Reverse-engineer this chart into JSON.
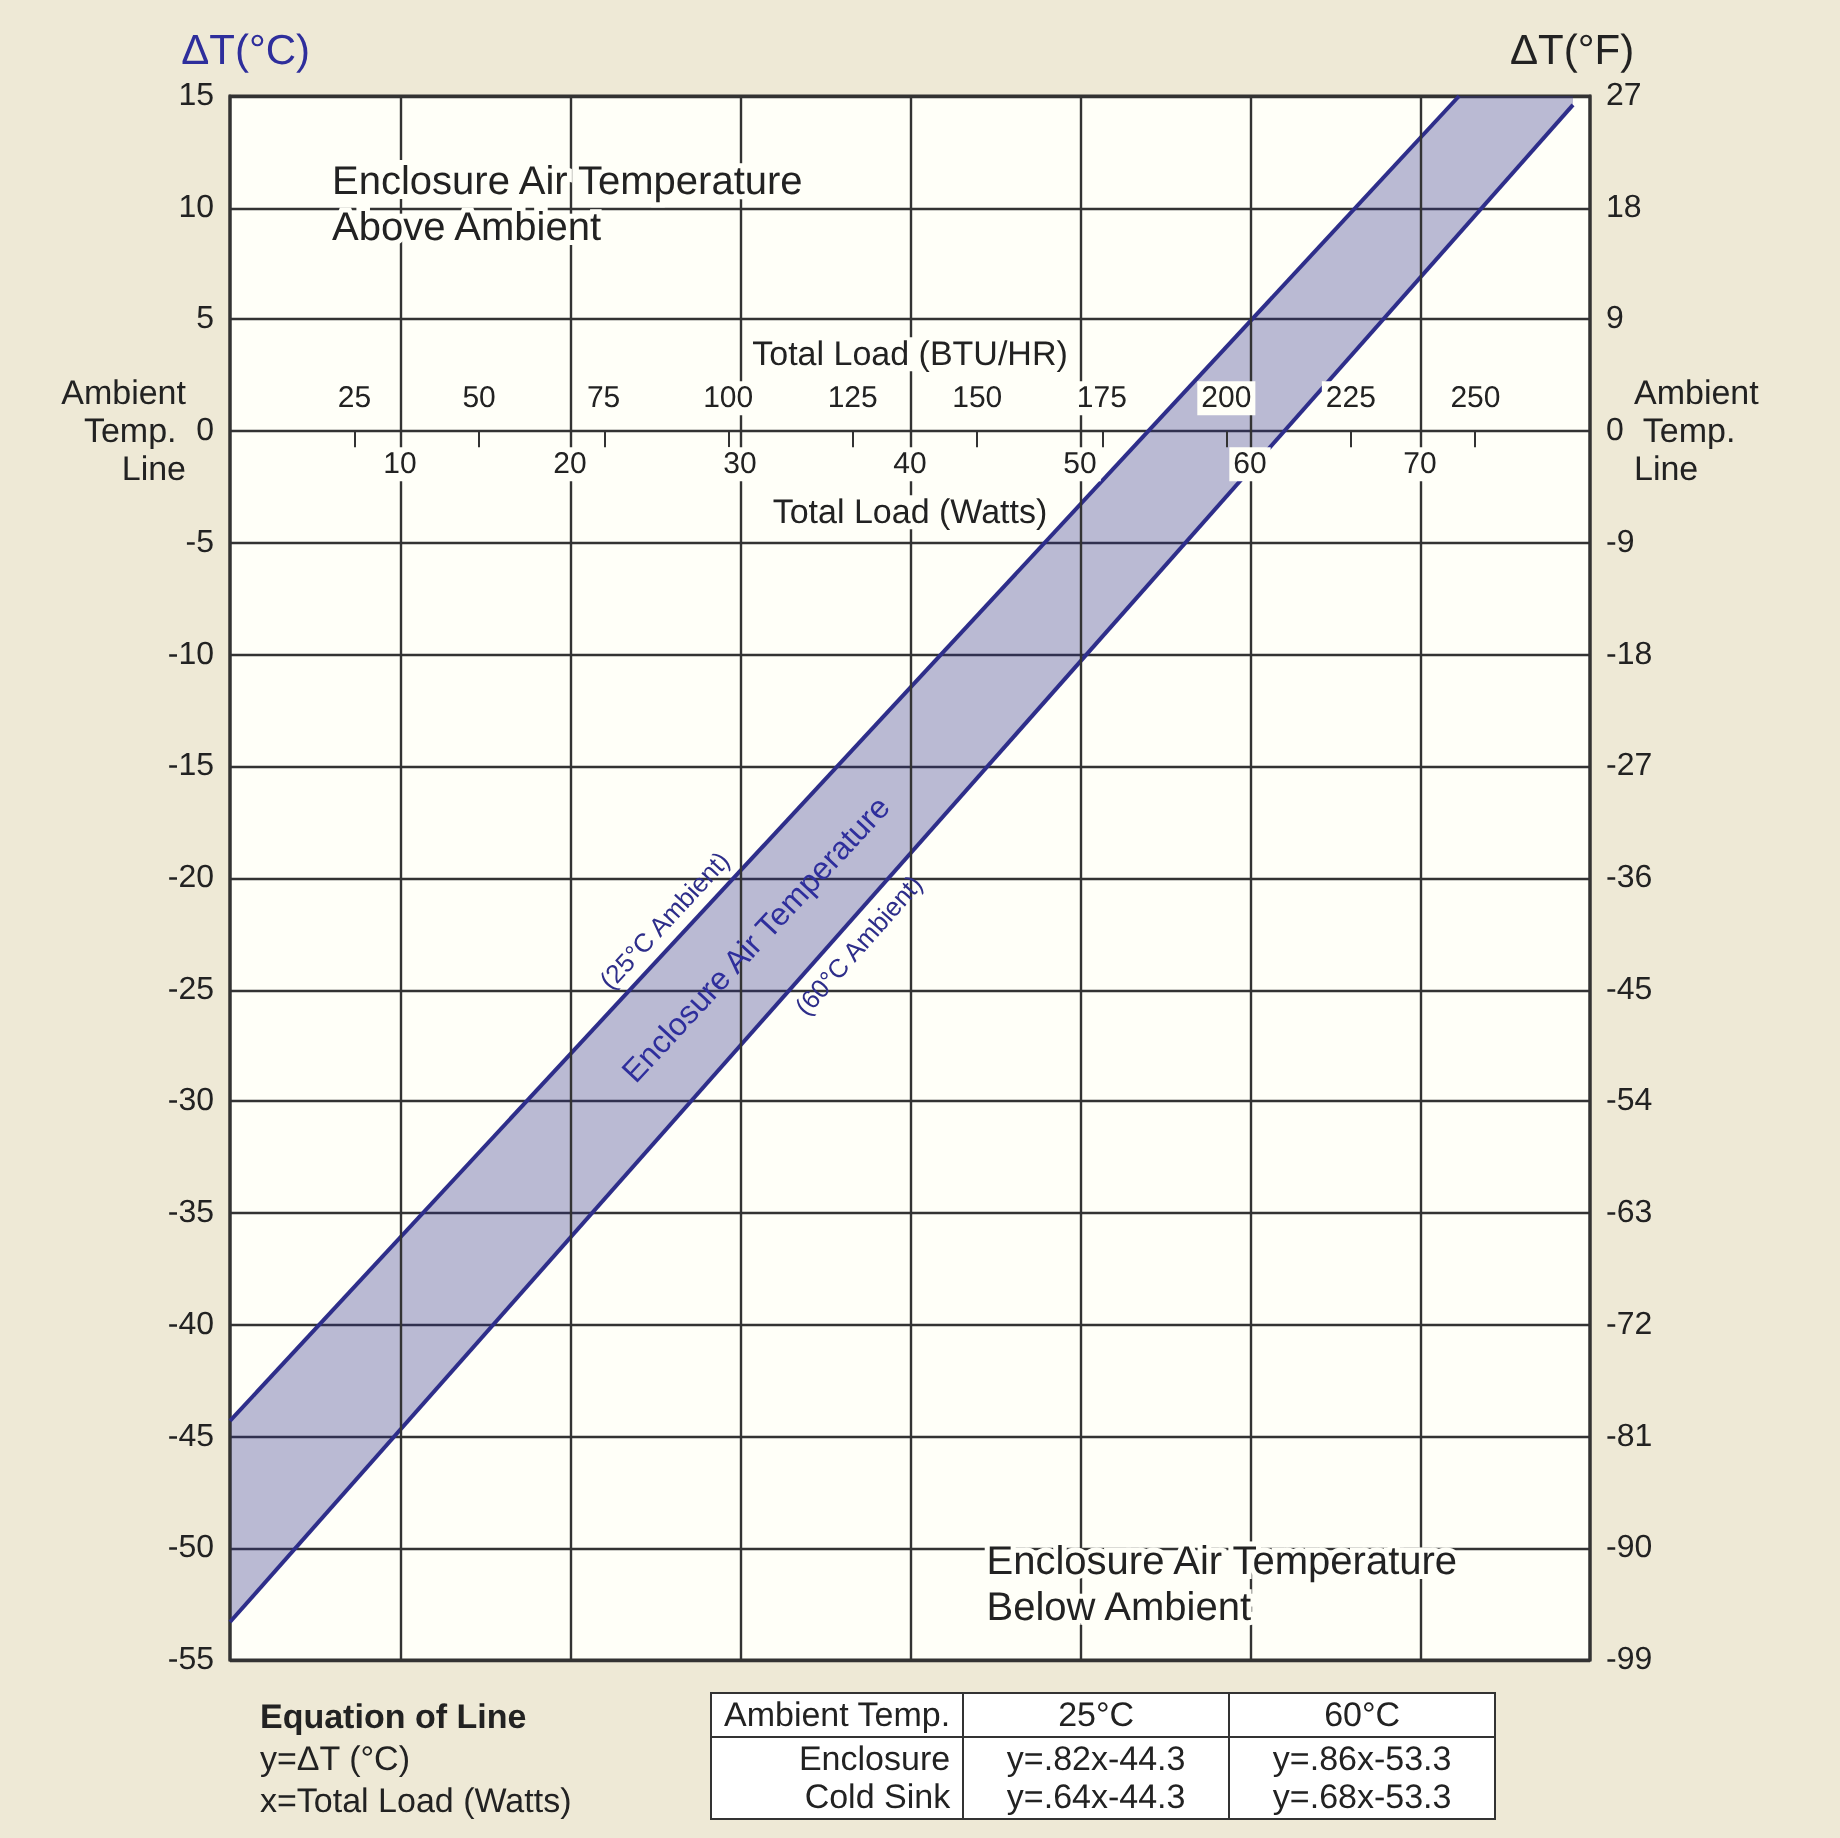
{
  "chart_data": {
    "type": "line",
    "xlabel": "Total Load (Watts)",
    "x2label": "Total Load (BTU/HR)",
    "ylabel": "ΔT(°C)",
    "y2label": "ΔT(°F)",
    "xlim": [
      0,
      80
    ],
    "xticks": [
      10,
      20,
      30,
      40,
      50,
      60,
      70
    ],
    "x2lim": [
      0,
      273
    ],
    "x2ticks": [
      25,
      50,
      75,
      100,
      125,
      150,
      175,
      200,
      225,
      250
    ],
    "ylim": [
      -55,
      15
    ],
    "yticks": [
      -55,
      -50,
      -45,
      -40,
      -35,
      -30,
      -25,
      -20,
      -15,
      -10,
      -5,
      0,
      5,
      10,
      15
    ],
    "y2lim": [
      -99,
      27
    ],
    "y2ticks": [
      -99,
      -90,
      -81,
      -72,
      -63,
      -54,
      -45,
      -36,
      -27,
      -18,
      -9,
      0,
      9,
      18,
      27
    ],
    "series": [
      {
        "name": "(25°C Ambient)",
        "color": "#2e2e8a",
        "x": [
          0,
          72.3,
          79
        ],
        "values": [
          -44.3,
          15,
          null
        ],
        "lower": [
          -53.3,
          8.9,
          14.6
        ],
        "upper": [
          -44.3,
          15,
          15
        ]
      },
      {
        "name": "(60°C Ambient)",
        "color": "#2e2e8a",
        "x": [
          0,
          79
        ],
        "values": [
          -53.3,
          14.6
        ]
      }
    ],
    "annotations": [
      "Enclosure Air Temperature Above Ambient",
      "Enclosure Air Temperature Below Ambient",
      "Equation of Line",
      "y=ΔT (°C)",
      "x=Total Load (Watts)",
      "Ambient Temp.",
      "25°C",
      "60°C",
      "Enclosure",
      "y=.82x-44.3",
      "y=.86x-53.3",
      "Cold Sink",
      "y=.64x-44.3",
      "y=.68x-53.3",
      "Enclosure Air Temperature",
      "Ambient Temp. Line"
    ],
    "grid": true,
    "legend": false,
    "marker": "none",
    "line_style": "solid"
  }
}
